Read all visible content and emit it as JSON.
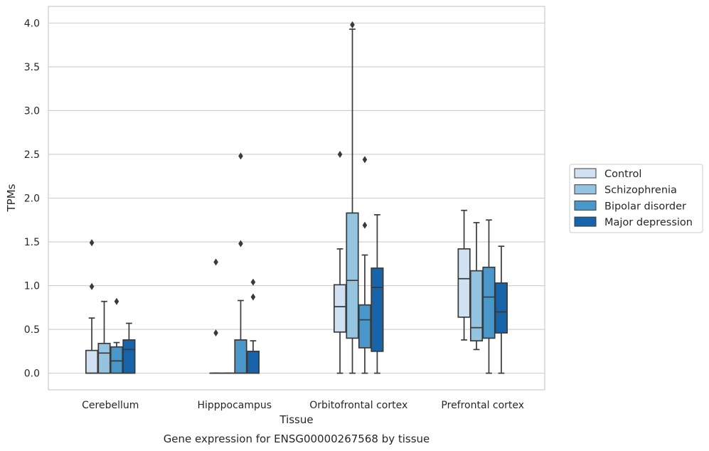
{
  "chart_data": {
    "type": "box",
    "title": "",
    "xlabel": "Tissue",
    "ylabel": "TPMs",
    "caption": "Gene expression for ENSG00000267568 by tissue",
    "ylim": [
      -0.19,
      4.19
    ],
    "yticks": [
      0.0,
      0.5,
      1.0,
      1.5,
      2.0,
      2.5,
      3.0,
      3.5,
      4.0
    ],
    "ytick_labels": [
      "0.0",
      "0.5",
      "1.0",
      "1.5",
      "2.0",
      "2.5",
      "3.0",
      "3.5",
      "4.0"
    ],
    "grid": "horizontal",
    "legend_position": "right",
    "categories": [
      "Cerebellum",
      "Hipppocampus",
      "Orbitofrontal cortex",
      "Prefrontal cortex"
    ],
    "series": [
      {
        "name": "Control",
        "color": "#d0e1f2",
        "boxes": [
          {
            "whisker_low": 0.0,
            "q1": 0.0,
            "median": 0.0,
            "q3": 0.26,
            "whisker_high": 0.63,
            "outliers": [
              0.99,
              1.49
            ]
          },
          {
            "whisker_low": 0.0,
            "q1": 0.0,
            "median": 0.0,
            "q3": 0.0,
            "whisker_high": 0.0,
            "outliers": [
              0.46,
              1.27
            ]
          },
          {
            "whisker_low": 0.0,
            "q1": 0.47,
            "median": 0.76,
            "q3": 1.01,
            "whisker_high": 1.42,
            "outliers": [
              2.5
            ]
          },
          {
            "whisker_low": 0.38,
            "q1": 0.64,
            "median": 1.08,
            "q3": 1.42,
            "whisker_high": 1.86,
            "outliers": []
          }
        ]
      },
      {
        "name": "Schizophrenia",
        "color": "#94c4df",
        "boxes": [
          {
            "whisker_low": 0.0,
            "q1": 0.0,
            "median": 0.23,
            "q3": 0.34,
            "whisker_high": 0.82,
            "outliers": []
          },
          {
            "whisker_low": 0.0,
            "q1": 0.0,
            "median": 0.0,
            "q3": 0.0,
            "whisker_high": 0.0,
            "outliers": []
          },
          {
            "whisker_low": 0.0,
            "q1": 0.4,
            "median": 1.06,
            "q3": 1.83,
            "whisker_high": 3.93,
            "outliers": [
              3.98
            ]
          },
          {
            "whisker_low": 0.27,
            "q1": 0.37,
            "median": 0.52,
            "q3": 1.17,
            "whisker_high": 1.72,
            "outliers": []
          }
        ]
      },
      {
        "name": "Bipolar disorder",
        "color": "#4a98c9",
        "boxes": [
          {
            "whisker_low": 0.0,
            "q1": 0.0,
            "median": 0.14,
            "q3": 0.3,
            "whisker_high": 0.35,
            "outliers": [
              0.82
            ]
          },
          {
            "whisker_low": 0.0,
            "q1": 0.0,
            "median": 0.0,
            "q3": 0.38,
            "whisker_high": 0.83,
            "outliers": [
              1.48,
              2.48
            ]
          },
          {
            "whisker_low": 0.0,
            "q1": 0.29,
            "median": 0.61,
            "q3": 0.78,
            "whisker_high": 1.35,
            "outliers": [
              1.69,
              2.44
            ]
          },
          {
            "whisker_low": 0.0,
            "q1": 0.4,
            "median": 0.87,
            "q3": 1.21,
            "whisker_high": 1.75,
            "outliers": []
          }
        ]
      },
      {
        "name": "Major depression",
        "color": "#1764ab",
        "boxes": [
          {
            "whisker_low": 0.0,
            "q1": 0.0,
            "median": 0.27,
            "q3": 0.38,
            "whisker_high": 0.57,
            "outliers": []
          },
          {
            "whisker_low": 0.0,
            "q1": 0.0,
            "median": 0.0,
            "q3": 0.25,
            "whisker_high": 0.37,
            "outliers": [
              0.87,
              1.04
            ]
          },
          {
            "whisker_low": 0.0,
            "q1": 0.25,
            "median": 0.98,
            "q3": 1.2,
            "whisker_high": 1.81,
            "outliers": []
          },
          {
            "whisker_low": 0.0,
            "q1": 0.46,
            "median": 0.7,
            "q3": 1.03,
            "whisker_high": 1.45,
            "outliers": []
          }
        ]
      }
    ]
  }
}
